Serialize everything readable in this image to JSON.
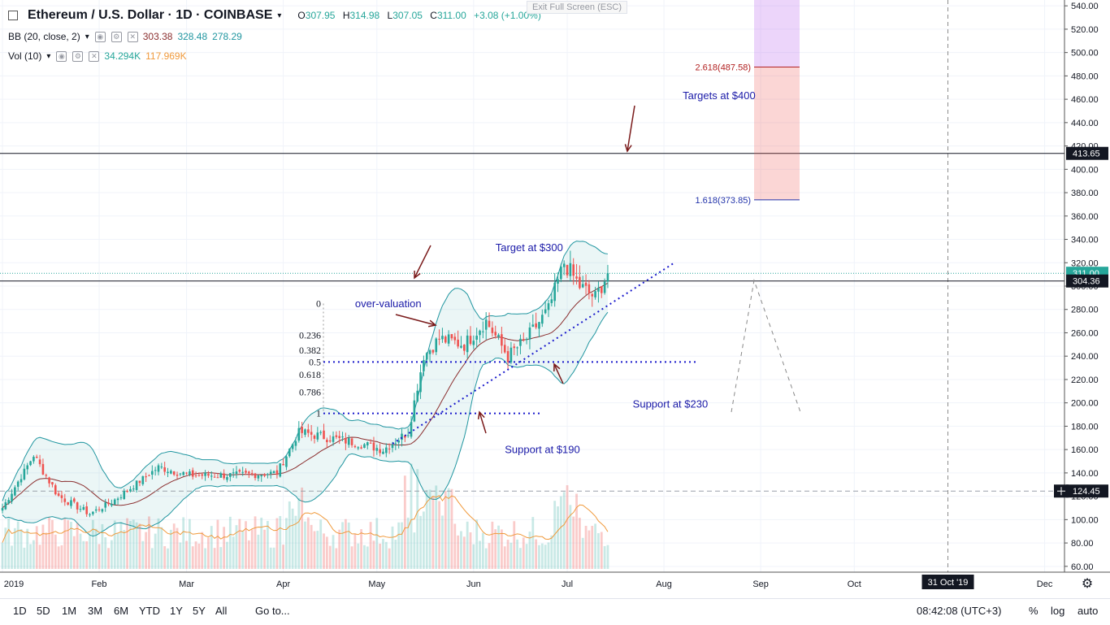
{
  "header": {
    "symbol": "Ethereum / U.S. Dollar · 1D · COINBASE",
    "open_label": "O",
    "open": "307.95",
    "high_label": "H",
    "high": "314.98",
    "low_label": "L",
    "low": "307.05",
    "close_label": "C",
    "close": "311.00",
    "change": "+3.08 (+1.00%)",
    "bb_label": "BB (20, close, 2)",
    "bb_values": [
      "303.38",
      "328.48",
      "278.29"
    ],
    "vol_label": "Vol (10)",
    "vol_values": [
      "34.294K",
      "117.969K"
    ],
    "exit_fullscreen": "Exit Full Screen (ESC)"
  },
  "bottom": {
    "ranges": [
      "1D",
      "5D",
      "1M",
      "3M",
      "6M",
      "YTD",
      "1Y",
      "5Y",
      "All"
    ],
    "goto": "Go to...",
    "clock": "08:42:08 (UTC+3)",
    "percent": "%",
    "log": "log",
    "auto": "auto"
  },
  "colors": {
    "up": "#26a69a",
    "down": "#ef5350",
    "bands": "#2196a0",
    "basis": "#8b2f2f",
    "annot": "#1a1aa8",
    "arrow": "#7a1a1a",
    "vol_ma": "#f09a3c"
  },
  "chart_data": {
    "type": "candlestick",
    "title": "Ethereum / U.S. Dollar · 1D · COINBASE",
    "x_axis": {
      "labels": [
        "2019",
        "Feb",
        "Mar",
        "Apr",
        "May",
        "Jun",
        "Jul",
        "Aug",
        "Sep",
        "Oct",
        "Dec"
      ],
      "label_days": [
        0,
        31,
        59,
        90,
        120,
        151,
        181,
        212,
        243,
        273,
        334
      ],
      "crosshair_label": "31 Oct '19",
      "crosshair_day": 303
    },
    "y_axis": {
      "min": 55,
      "max": 545,
      "ticks": [
        60,
        80,
        100,
        120,
        140,
        160,
        180,
        200,
        220,
        240,
        260,
        280,
        300,
        320,
        340,
        360,
        380,
        400,
        420,
        440,
        460,
        480,
        500,
        520,
        540
      ],
      "price_tags": [
        {
          "value": 413.65,
          "label": "413.65",
          "style": "dark"
        },
        {
          "value": 311.0,
          "label": "311.00",
          "style": "up"
        },
        {
          "value": 304.36,
          "label": "304.36",
          "style": "dark"
        },
        {
          "value": 124.45,
          "label": "124.45",
          "style": "dark"
        }
      ]
    },
    "horizontal_lines": [
      {
        "value": 413.65,
        "style": "solid"
      },
      {
        "value": 304.36,
        "style": "solid"
      },
      {
        "value": 311.0,
        "style": "dotted"
      },
      {
        "value": 124.45,
        "style": "dashed"
      }
    ],
    "anchors": [
      {
        "day": 0,
        "close": 110
      },
      {
        "day": 10,
        "close": 155
      },
      {
        "day": 18,
        "close": 120
      },
      {
        "day": 28,
        "close": 105
      },
      {
        "day": 35,
        "close": 115
      },
      {
        "day": 50,
        "close": 145
      },
      {
        "day": 60,
        "close": 138
      },
      {
        "day": 75,
        "close": 138
      },
      {
        "day": 88,
        "close": 140
      },
      {
        "day": 95,
        "close": 175
      },
      {
        "day": 105,
        "close": 170
      },
      {
        "day": 115,
        "close": 165
      },
      {
        "day": 122,
        "close": 160
      },
      {
        "day": 130,
        "close": 175
      },
      {
        "day": 135,
        "close": 240
      },
      {
        "day": 140,
        "close": 255
      },
      {
        "day": 148,
        "close": 250
      },
      {
        "day": 155,
        "close": 270
      },
      {
        "day": 162,
        "close": 240
      },
      {
        "day": 168,
        "close": 255
      },
      {
        "day": 175,
        "close": 280
      },
      {
        "day": 180,
        "close": 320
      },
      {
        "day": 185,
        "close": 300
      },
      {
        "day": 190,
        "close": 290
      },
      {
        "day": 194,
        "close": 311
      }
    ],
    "fib_levels": [
      {
        "label": "0",
        "value": 285
      },
      {
        "label": "0.236",
        "value": 258
      },
      {
        "label": "0.382",
        "value": 245
      },
      {
        "label": "0.5",
        "value": 235
      },
      {
        "label": "0.618",
        "value": 224
      },
      {
        "label": "0.786",
        "value": 209
      },
      {
        "label": "1",
        "value": 191
      }
    ],
    "fib_extensions": [
      {
        "label": "2.618(487.58)",
        "value": 487.58
      },
      {
        "label": "1.618(373.85)",
        "value": 373.85
      }
    ],
    "annotations": [
      {
        "text": "Targets at $400",
        "price": 460,
        "day": 218
      },
      {
        "text": "Target at $300",
        "price": 330,
        "day": 158
      },
      {
        "text": "over-valuation",
        "price": 282,
        "day": 113
      },
      {
        "text": "Support at $230",
        "price": 196,
        "day": 202
      },
      {
        "text": "Support at $190",
        "price": 157,
        "day": 161
      }
    ]
  }
}
